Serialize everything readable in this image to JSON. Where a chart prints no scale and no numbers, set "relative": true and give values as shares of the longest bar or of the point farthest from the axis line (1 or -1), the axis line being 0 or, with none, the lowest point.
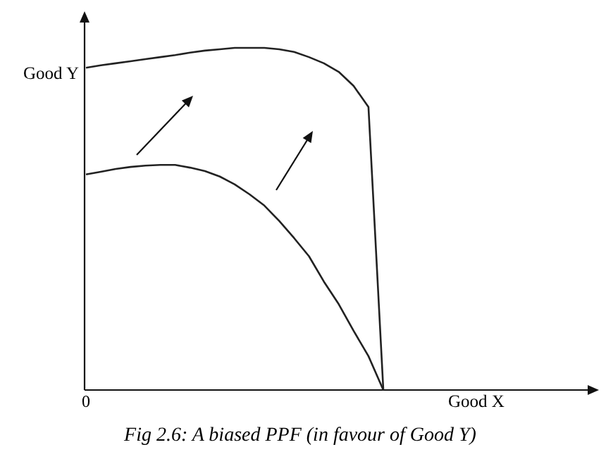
{
  "chart_data": {
    "type": "line",
    "relative": true,
    "xlabel": "Good X",
    "ylabel": "Good Y",
    "line_style": "solid",
    "categories": [
      null,
      null,
      null,
      null,
      null,
      null,
      null,
      null,
      null,
      null,
      null,
      null,
      null,
      null,
      null,
      null,
      null,
      null,
      null,
      null,
      null
    ],
    "annotations": [
      "0",
      "Fig 2.6: A biased PPF (in favour of Good Y)"
    ],
    "series": [
      {
        "color": "#222222",
        "values": [
          0.942,
          0.949,
          0.955,
          0.961,
          0.967,
          0.973,
          0.979,
          0.986,
          0.992,
          0.996,
          1,
          1,
          1,
          0.996,
          0.988,
          0.973,
          0.955,
          0.93,
          0.889,
          0.827,
          0
        ]
      },
      {
        "color": "#222222",
        "values": [
          0.63,
          0.638,
          0.646,
          0.652,
          0.656,
          0.658,
          0.658,
          0.65,
          0.64,
          0.624,
          0.601,
          0.572,
          0.539,
          0.494,
          0.444,
          0.391,
          0.317,
          0.251,
          0.173,
          0.099,
          0
        ]
      }
    ]
  }
}
